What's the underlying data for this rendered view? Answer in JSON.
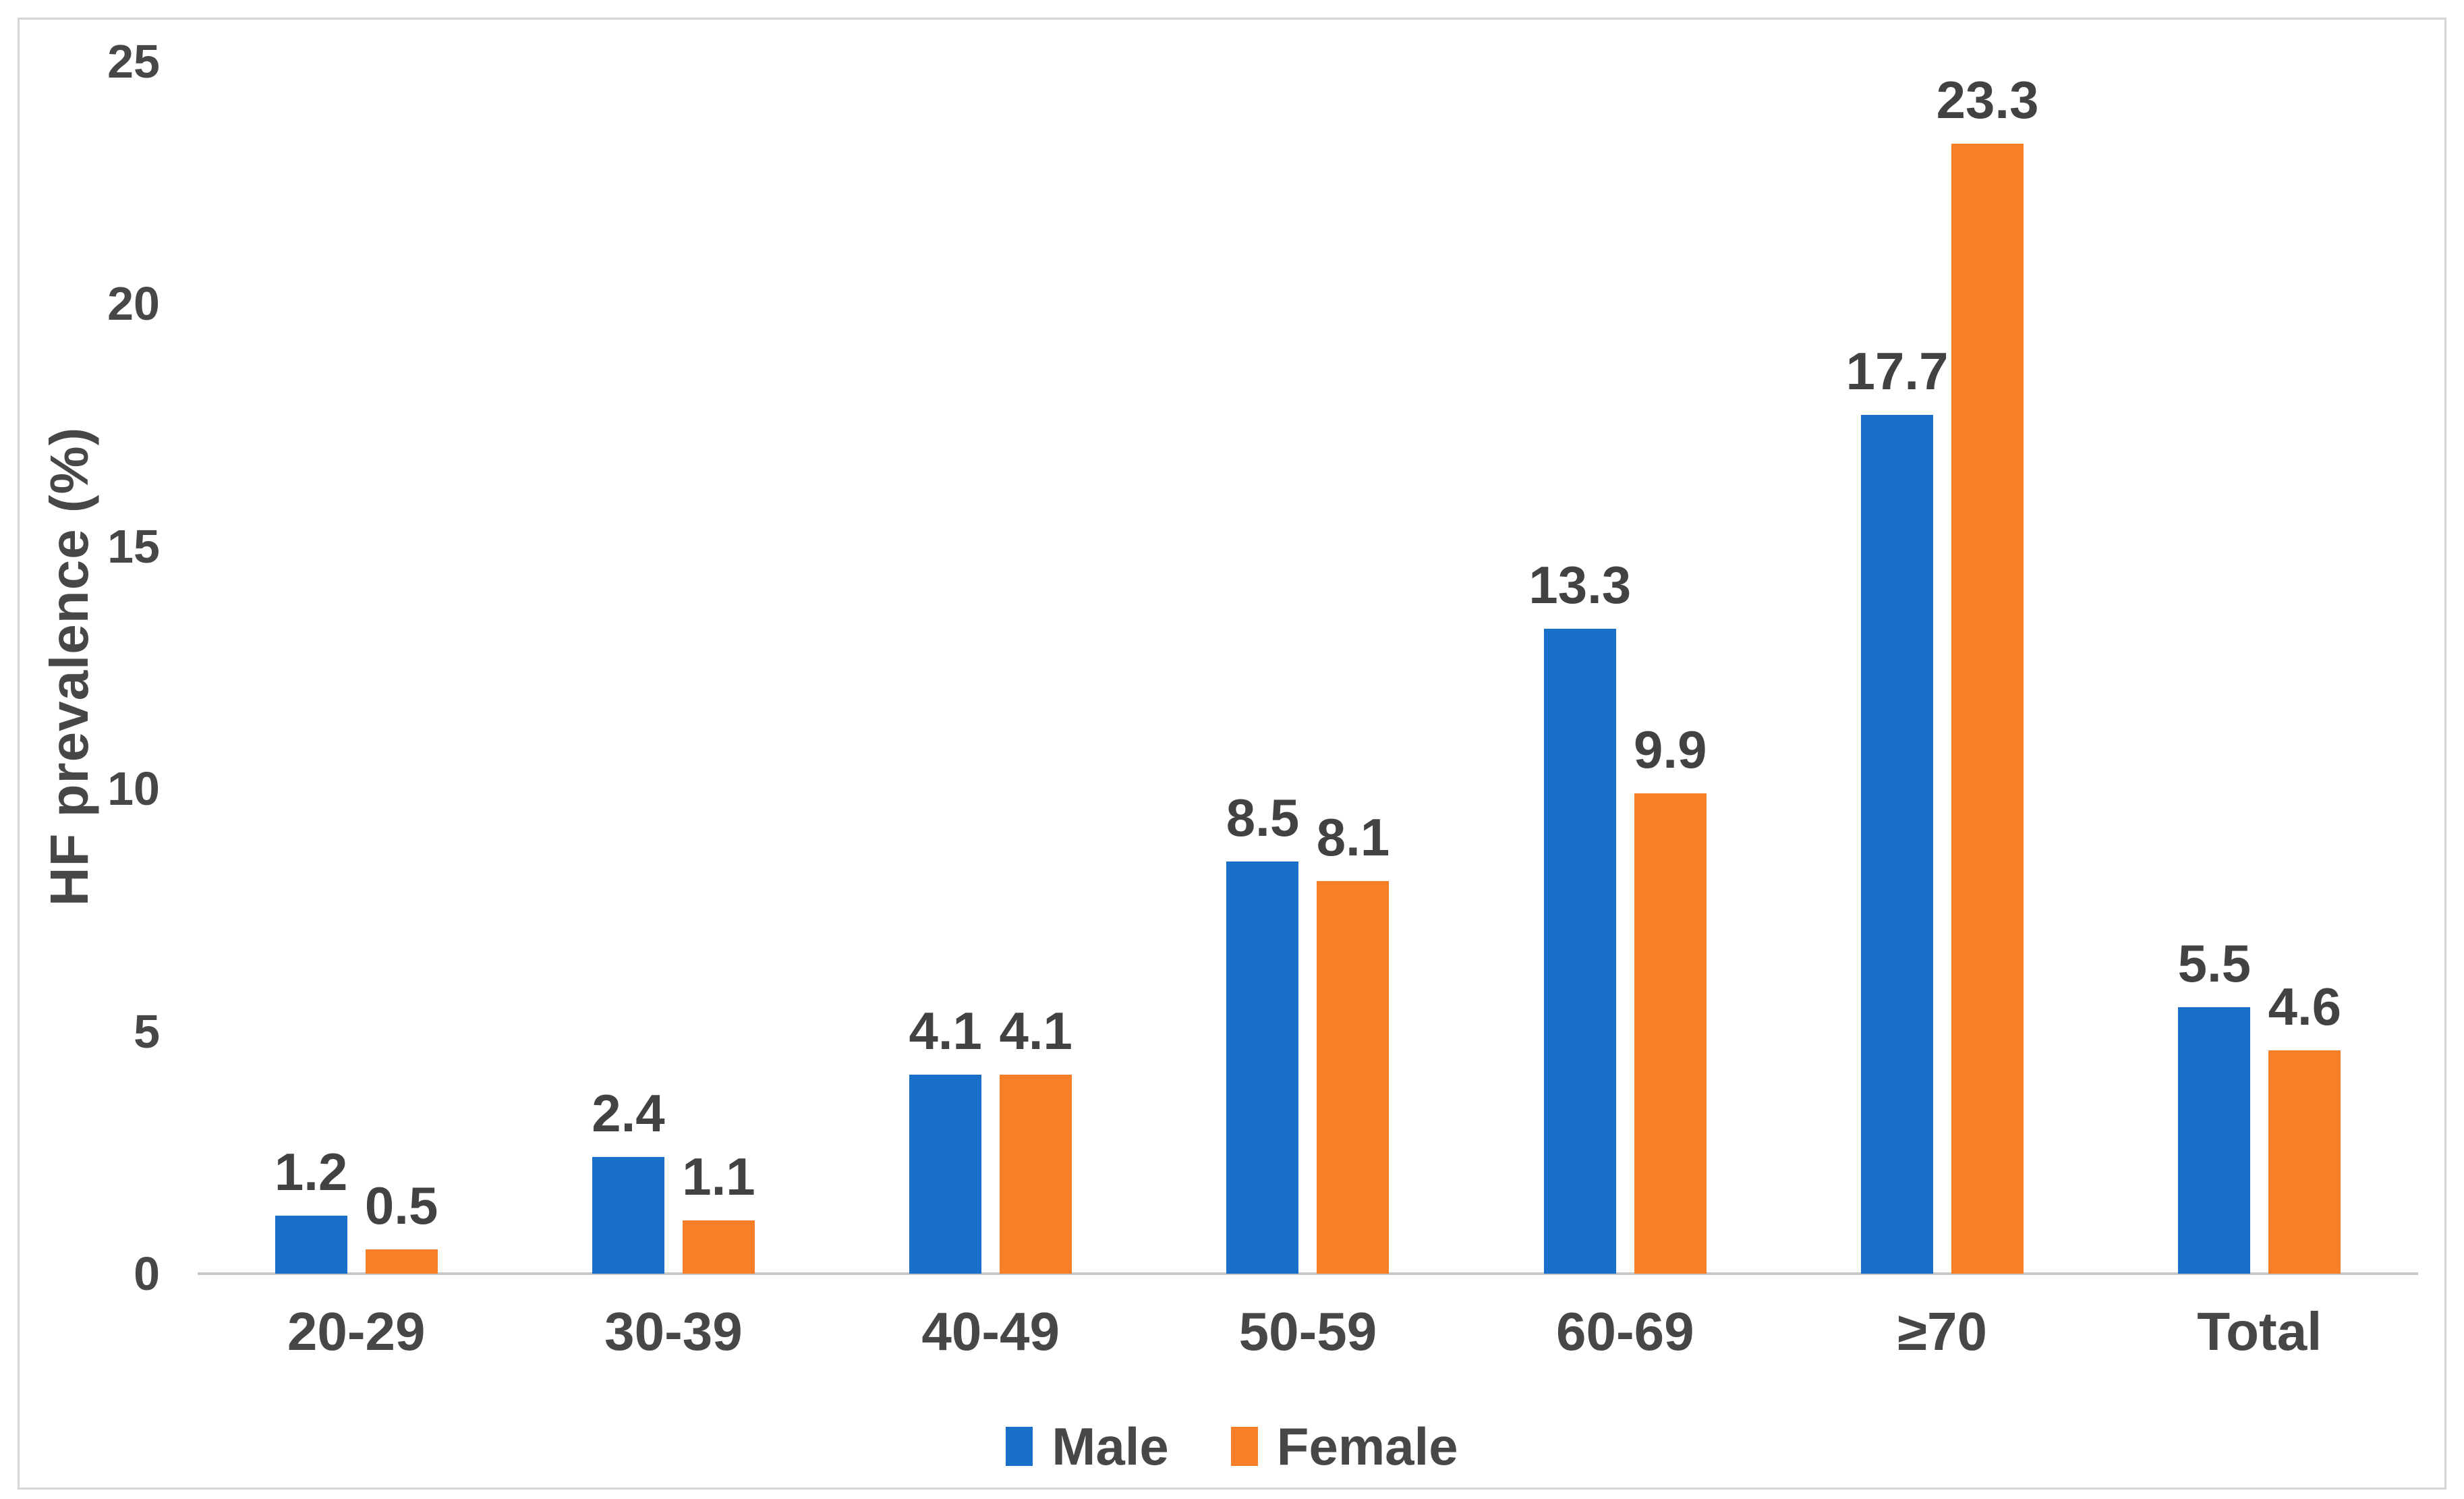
{
  "chart_data": {
    "type": "bar",
    "title": "",
    "xlabel": "",
    "ylabel": "HF prevalence (%)",
    "categories": [
      "20-29",
      "30-39",
      "40-49",
      "50-59",
      "60-69",
      "≥70",
      "Total"
    ],
    "series": [
      {
        "name": "Male",
        "color": "#1A70C8",
        "values": [
          1.2,
          2.4,
          4.1,
          8.5,
          13.3,
          17.7,
          5.5
        ]
      },
      {
        "name": "Female",
        "color": "#F97E28",
        "values": [
          0.5,
          1.1,
          4.1,
          8.1,
          9.9,
          23.3,
          4.6
        ]
      }
    ],
    "ylim": [
      0,
      25
    ],
    "yticks": [
      0,
      5,
      10,
      15,
      20,
      25
    ],
    "grid": false,
    "value_labels": true,
    "value_label_decimals": 1,
    "legend_position": "bottom",
    "axis_line_color": "#C6C6C6",
    "text_color": "#474747",
    "frame_border_color": "#D6D6D6",
    "background_color": "#FFFFFF"
  }
}
